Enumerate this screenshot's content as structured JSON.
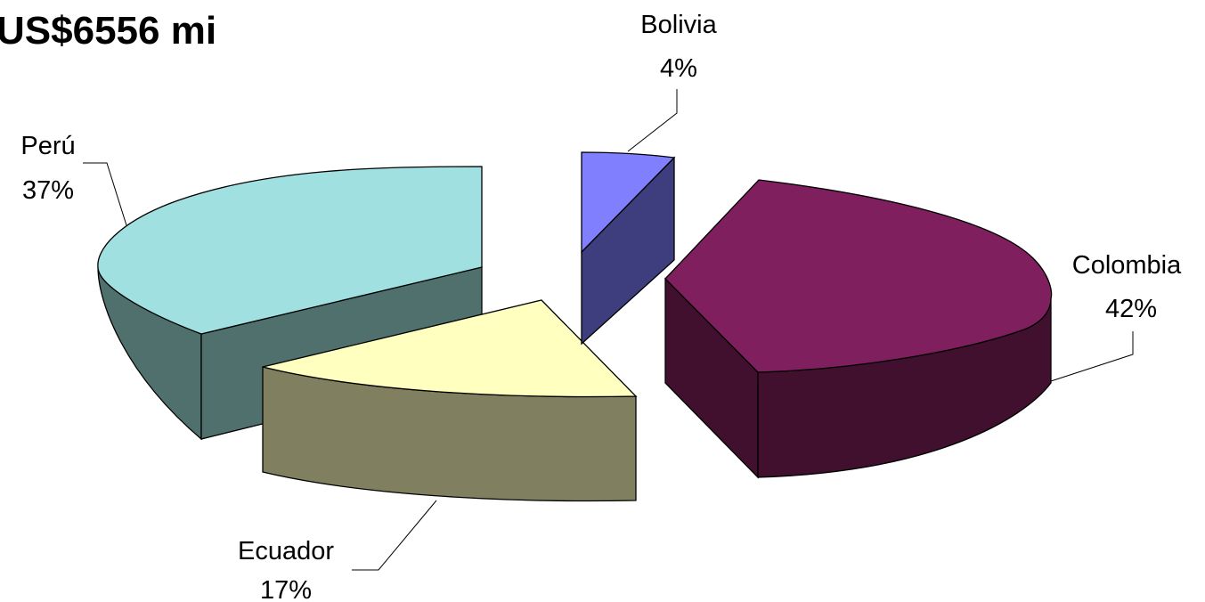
{
  "title": "US$6556 mi",
  "chart_data": {
    "type": "pie",
    "title": "US$6556 mi",
    "style": "3d-exploded",
    "slices": [
      {
        "label": "Bolivia",
        "value": 4,
        "display": "4%",
        "top_color": "#8080ff",
        "side_color": "#3e3e7e"
      },
      {
        "label": "Colombia",
        "value": 42,
        "display": "42%",
        "top_color": "#7f1f5e",
        "side_color": "#40102e"
      },
      {
        "label": "Ecuador",
        "value": 17,
        "display": "17%",
        "top_color": "#ffffc0",
        "side_color": "#808060"
      },
      {
        "label": "Perú",
        "value": 37,
        "display": "37%",
        "top_color": "#a0e0e0",
        "side_color": "#50706e"
      }
    ]
  }
}
